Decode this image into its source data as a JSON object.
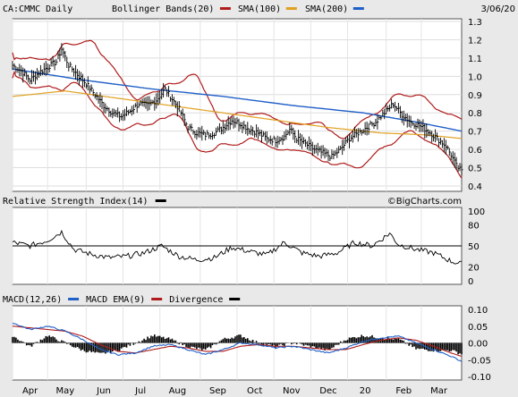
{
  "chart_data": [
    {
      "type": "line",
      "panel": "price",
      "title": "CA:CMMC Daily",
      "date": "3/06/20",
      "legend": [
        {
          "label": "Bollinger Bands(20)",
          "color": "#b01c1c"
        },
        {
          "label": "SMA(100)",
          "color": "#e0a020"
        },
        {
          "label": "SMA(200)",
          "color": "#1f5fc8"
        }
      ],
      "watermark": "©BigCharts.com",
      "ylim": [
        0.4,
        1.3
      ],
      "yticks": [
        "1.3",
        "1.2",
        "1.1",
        "1.0",
        "0.9",
        "0.8",
        "0.7",
        "0.6",
        "0.5",
        "0.4"
      ],
      "x_months": [
        "Apr",
        "May",
        "Jun",
        "Jul",
        "Aug",
        "Sep",
        "Oct",
        "Nov",
        "Dec",
        "20",
        "Feb",
        "Mar"
      ],
      "price_keypoints": [
        [
          0,
          1.06
        ],
        [
          5,
          1.03
        ],
        [
          10,
          0.98
        ],
        [
          15,
          1.02
        ],
        [
          20,
          1.05
        ],
        [
          25,
          1.08
        ],
        [
          28,
          1.15
        ],
        [
          32,
          1.06
        ],
        [
          37,
          1.01
        ],
        [
          42,
          0.96
        ],
        [
          47,
          0.9
        ],
        [
          52,
          0.84
        ],
        [
          57,
          0.8
        ],
        [
          62,
          0.78
        ],
        [
          67,
          0.81
        ],
        [
          72,
          0.85
        ],
        [
          77,
          0.84
        ],
        [
          82,
          0.87
        ],
        [
          87,
          0.93
        ],
        [
          90,
          0.89
        ],
        [
          95,
          0.82
        ],
        [
          100,
          0.72
        ],
        [
          105,
          0.69
        ],
        [
          110,
          0.68
        ],
        [
          115,
          0.69
        ],
        [
          120,
          0.72
        ],
        [
          125,
          0.76
        ],
        [
          130,
          0.74
        ],
        [
          135,
          0.71
        ],
        [
          140,
          0.69
        ],
        [
          145,
          0.66
        ],
        [
          150,
          0.65
        ],
        [
          155,
          0.67
        ],
        [
          158,
          0.71
        ],
        [
          162,
          0.66
        ],
        [
          167,
          0.63
        ],
        [
          172,
          0.6
        ],
        [
          177,
          0.58
        ],
        [
          182,
          0.56
        ],
        [
          187,
          0.6
        ],
        [
          192,
          0.66
        ],
        [
          197,
          0.69
        ],
        [
          202,
          0.72
        ],
        [
          207,
          0.75
        ],
        [
          212,
          0.8
        ],
        [
          217,
          0.85
        ],
        [
          222,
          0.79
        ],
        [
          227,
          0.75
        ],
        [
          232,
          0.73
        ],
        [
          237,
          0.7
        ],
        [
          242,
          0.66
        ],
        [
          247,
          0.62
        ],
        [
          250,
          0.57
        ],
        [
          253,
          0.51
        ],
        [
          256,
          0.48
        ]
      ],
      "sma100_keypoints": [
        [
          0,
          0.89
        ],
        [
          30,
          0.92
        ],
        [
          60,
          0.88
        ],
        [
          90,
          0.84
        ],
        [
          120,
          0.8
        ],
        [
          150,
          0.76
        ],
        [
          180,
          0.72
        ],
        [
          210,
          0.69
        ],
        [
          235,
          0.68
        ],
        [
          256,
          0.66
        ]
      ],
      "sma200_keypoints": [
        [
          0,
          1.04
        ],
        [
          40,
          0.98
        ],
        [
          80,
          0.93
        ],
        [
          120,
          0.89
        ],
        [
          160,
          0.84
        ],
        [
          200,
          0.8
        ],
        [
          230,
          0.75
        ],
        [
          256,
          0.7
        ]
      ]
    },
    {
      "type": "line",
      "panel": "rsi",
      "title": "Relative Strength Index(14)",
      "ylim": [
        0,
        100
      ],
      "yticks": [
        "100",
        "80",
        "50",
        "20",
        "0"
      ],
      "reference": 50,
      "legend": [
        {
          "label": "Relative Strength Index(14)",
          "color": "#000000"
        }
      ],
      "keypoints": [
        [
          0,
          55
        ],
        [
          10,
          50
        ],
        [
          20,
          58
        ],
        [
          28,
          70
        ],
        [
          35,
          45
        ],
        [
          45,
          38
        ],
        [
          55,
          33
        ],
        [
          65,
          35
        ],
        [
          75,
          40
        ],
        [
          85,
          50
        ],
        [
          95,
          35
        ],
        [
          105,
          30
        ],
        [
          115,
          33
        ],
        [
          125,
          48
        ],
        [
          135,
          42
        ],
        [
          145,
          37
        ],
        [
          155,
          55
        ],
        [
          165,
          40
        ],
        [
          175,
          35
        ],
        [
          185,
          40
        ],
        [
          195,
          55
        ],
        [
          205,
          50
        ],
        [
          215,
          68
        ],
        [
          220,
          52
        ],
        [
          230,
          45
        ],
        [
          240,
          40
        ],
        [
          250,
          28
        ],
        [
          256,
          24
        ]
      ]
    },
    {
      "type": "line",
      "panel": "macd",
      "title": "MACD(12,26)",
      "ylim": [
        -0.1,
        0.1
      ],
      "yticks": [
        "0.10",
        "0.05",
        "0.00",
        "-0.05",
        "-0.10"
      ],
      "legend": [
        {
          "label": "MACD(12,26)",
          "color": "#1f5fc8"
        },
        {
          "label": "MACD EMA(9)",
          "color": "#b01c1c"
        },
        {
          "label": "Divergence",
          "color": "#000000"
        }
      ],
      "macd_keypoints": [
        [
          0,
          0.06
        ],
        [
          10,
          0.04
        ],
        [
          20,
          0.05
        ],
        [
          30,
          0.035
        ],
        [
          40,
          0.01
        ],
        [
          50,
          -0.02
        ],
        [
          60,
          -0.035
        ],
        [
          70,
          -0.03
        ],
        [
          80,
          -0.01
        ],
        [
          90,
          -0.005
        ],
        [
          100,
          -0.02
        ],
        [
          110,
          -0.035
        ],
        [
          120,
          -0.02
        ],
        [
          130,
          0.0
        ],
        [
          140,
          -0.005
        ],
        [
          150,
          -0.015
        ],
        [
          160,
          -0.01
        ],
        [
          170,
          -0.02
        ],
        [
          180,
          -0.03
        ],
        [
          190,
          -0.015
        ],
        [
          200,
          0.005
        ],
        [
          210,
          0.015
        ],
        [
          220,
          0.02
        ],
        [
          230,
          0.0
        ],
        [
          240,
          -0.02
        ],
        [
          250,
          -0.04
        ],
        [
          256,
          -0.055
        ]
      ],
      "ema_keypoints": [
        [
          0,
          0.05
        ],
        [
          10,
          0.045
        ],
        [
          20,
          0.04
        ],
        [
          30,
          0.035
        ],
        [
          40,
          0.02
        ],
        [
          50,
          -0.005
        ],
        [
          60,
          -0.025
        ],
        [
          70,
          -0.03
        ],
        [
          80,
          -0.02
        ],
        [
          90,
          -0.01
        ],
        [
          100,
          -0.015
        ],
        [
          110,
          -0.025
        ],
        [
          120,
          -0.025
        ],
        [
          130,
          -0.01
        ],
        [
          140,
          -0.005
        ],
        [
          150,
          -0.01
        ],
        [
          160,
          -0.01
        ],
        [
          170,
          -0.015
        ],
        [
          180,
          -0.02
        ],
        [
          190,
          -0.02
        ],
        [
          200,
          -0.005
        ],
        [
          210,
          0.008
        ],
        [
          220,
          0.015
        ],
        [
          230,
          0.008
        ],
        [
          240,
          -0.01
        ],
        [
          250,
          -0.03
        ],
        [
          256,
          -0.04
        ]
      ]
    }
  ]
}
